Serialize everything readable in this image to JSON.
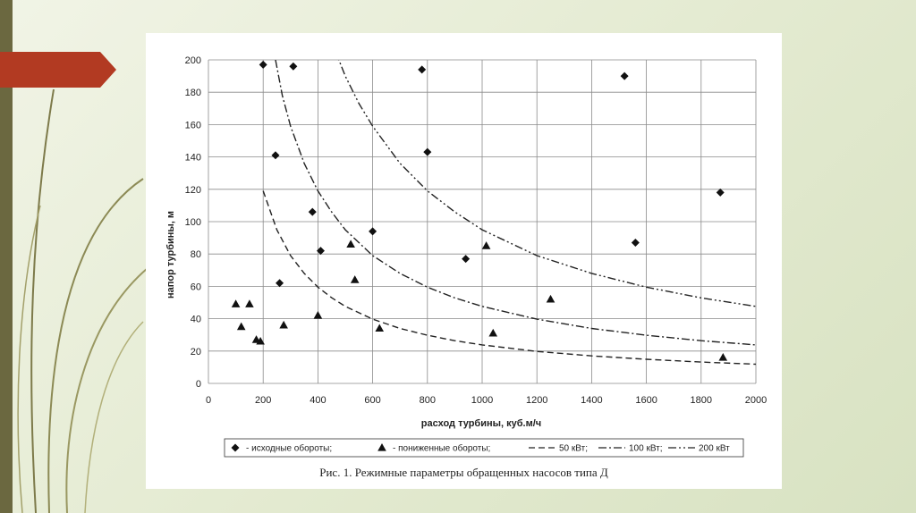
{
  "caption": "Рис. 1. Режимные параметры обращенных насосов типа Д",
  "colors": {
    "accent_arrow": "#b23a22",
    "side_bar": "#6b6840",
    "frame_line": "#bcbcbc"
  },
  "chart_data": {
    "type": "scatter",
    "xlabel": "расход турбины, куб.м/ч",
    "ylabel": "напор турбины, м",
    "xlim": [
      0,
      2000
    ],
    "ylim": [
      0,
      200
    ],
    "x_ticks": [
      0,
      200,
      400,
      600,
      800,
      1000,
      1200,
      1400,
      1600,
      1800,
      2000
    ],
    "y_ticks": [
      0,
      20,
      40,
      60,
      80,
      100,
      120,
      140,
      160,
      180,
      200
    ],
    "grid": true,
    "legend_position": "bottom",
    "series": [
      {
        "name": "- исходные обороты;",
        "marker": "diamond",
        "points": [
          [
            200,
            197
          ],
          [
            310,
            196
          ],
          [
            245,
            141
          ],
          [
            260,
            62
          ],
          [
            380,
            106
          ],
          [
            410,
            82
          ],
          [
            600,
            94
          ],
          [
            780,
            194
          ],
          [
            800,
            143
          ],
          [
            940,
            77
          ],
          [
            1520,
            190
          ],
          [
            1560,
            87
          ],
          [
            1870,
            118
          ]
        ]
      },
      {
        "name": "- пониженные обороты;",
        "marker": "triangle",
        "points": [
          [
            100,
            49
          ],
          [
            120,
            35
          ],
          [
            150,
            49
          ],
          [
            175,
            27
          ],
          [
            190,
            26
          ],
          [
            275,
            36
          ],
          [
            400,
            42
          ],
          [
            520,
            86
          ],
          [
            535,
            64
          ],
          [
            625,
            34
          ],
          [
            1015,
            85
          ],
          [
            1040,
            31
          ],
          [
            1250,
            52
          ],
          [
            1880,
            16
          ]
        ]
      },
      {
        "name": "50 кВт;",
        "style": "dashed",
        "points": [
          [
            200,
            119
          ],
          [
            250,
            95
          ],
          [
            300,
            79
          ],
          [
            350,
            68
          ],
          [
            400,
            59.5
          ],
          [
            450,
            53
          ],
          [
            500,
            47.6
          ],
          [
            600,
            39.7
          ],
          [
            700,
            34
          ],
          [
            800,
            29.8
          ],
          [
            900,
            26.4
          ],
          [
            1000,
            23.8
          ],
          [
            1200,
            19.8
          ],
          [
            1400,
            17
          ],
          [
            1600,
            14.9
          ],
          [
            1800,
            13.2
          ],
          [
            2000,
            11.9
          ]
        ]
      },
      {
        "name": "100 кВт;",
        "style": "dash-dot",
        "points": [
          [
            245,
            200
          ],
          [
            270,
            178
          ],
          [
            300,
            159
          ],
          [
            350,
            136
          ],
          [
            400,
            119
          ],
          [
            450,
            106
          ],
          [
            500,
            95
          ],
          [
            600,
            79
          ],
          [
            700,
            68
          ],
          [
            800,
            59.5
          ],
          [
            900,
            52.9
          ],
          [
            1000,
            47.6
          ],
          [
            1200,
            39.7
          ],
          [
            1400,
            34
          ],
          [
            1600,
            29.8
          ],
          [
            1800,
            26.4
          ],
          [
            2000,
            23.8
          ]
        ]
      },
      {
        "name": "200 кВт",
        "style": "dash-dot-dot",
        "points": [
          [
            460,
            207
          ],
          [
            500,
            190
          ],
          [
            550,
            173
          ],
          [
            600,
            159
          ],
          [
            700,
            136
          ],
          [
            800,
            119
          ],
          [
            900,
            106
          ],
          [
            1000,
            95
          ],
          [
            1200,
            79
          ],
          [
            1400,
            68
          ],
          [
            1600,
            59.5
          ],
          [
            1800,
            52.9
          ],
          [
            2000,
            47.6
          ]
        ]
      }
    ]
  }
}
